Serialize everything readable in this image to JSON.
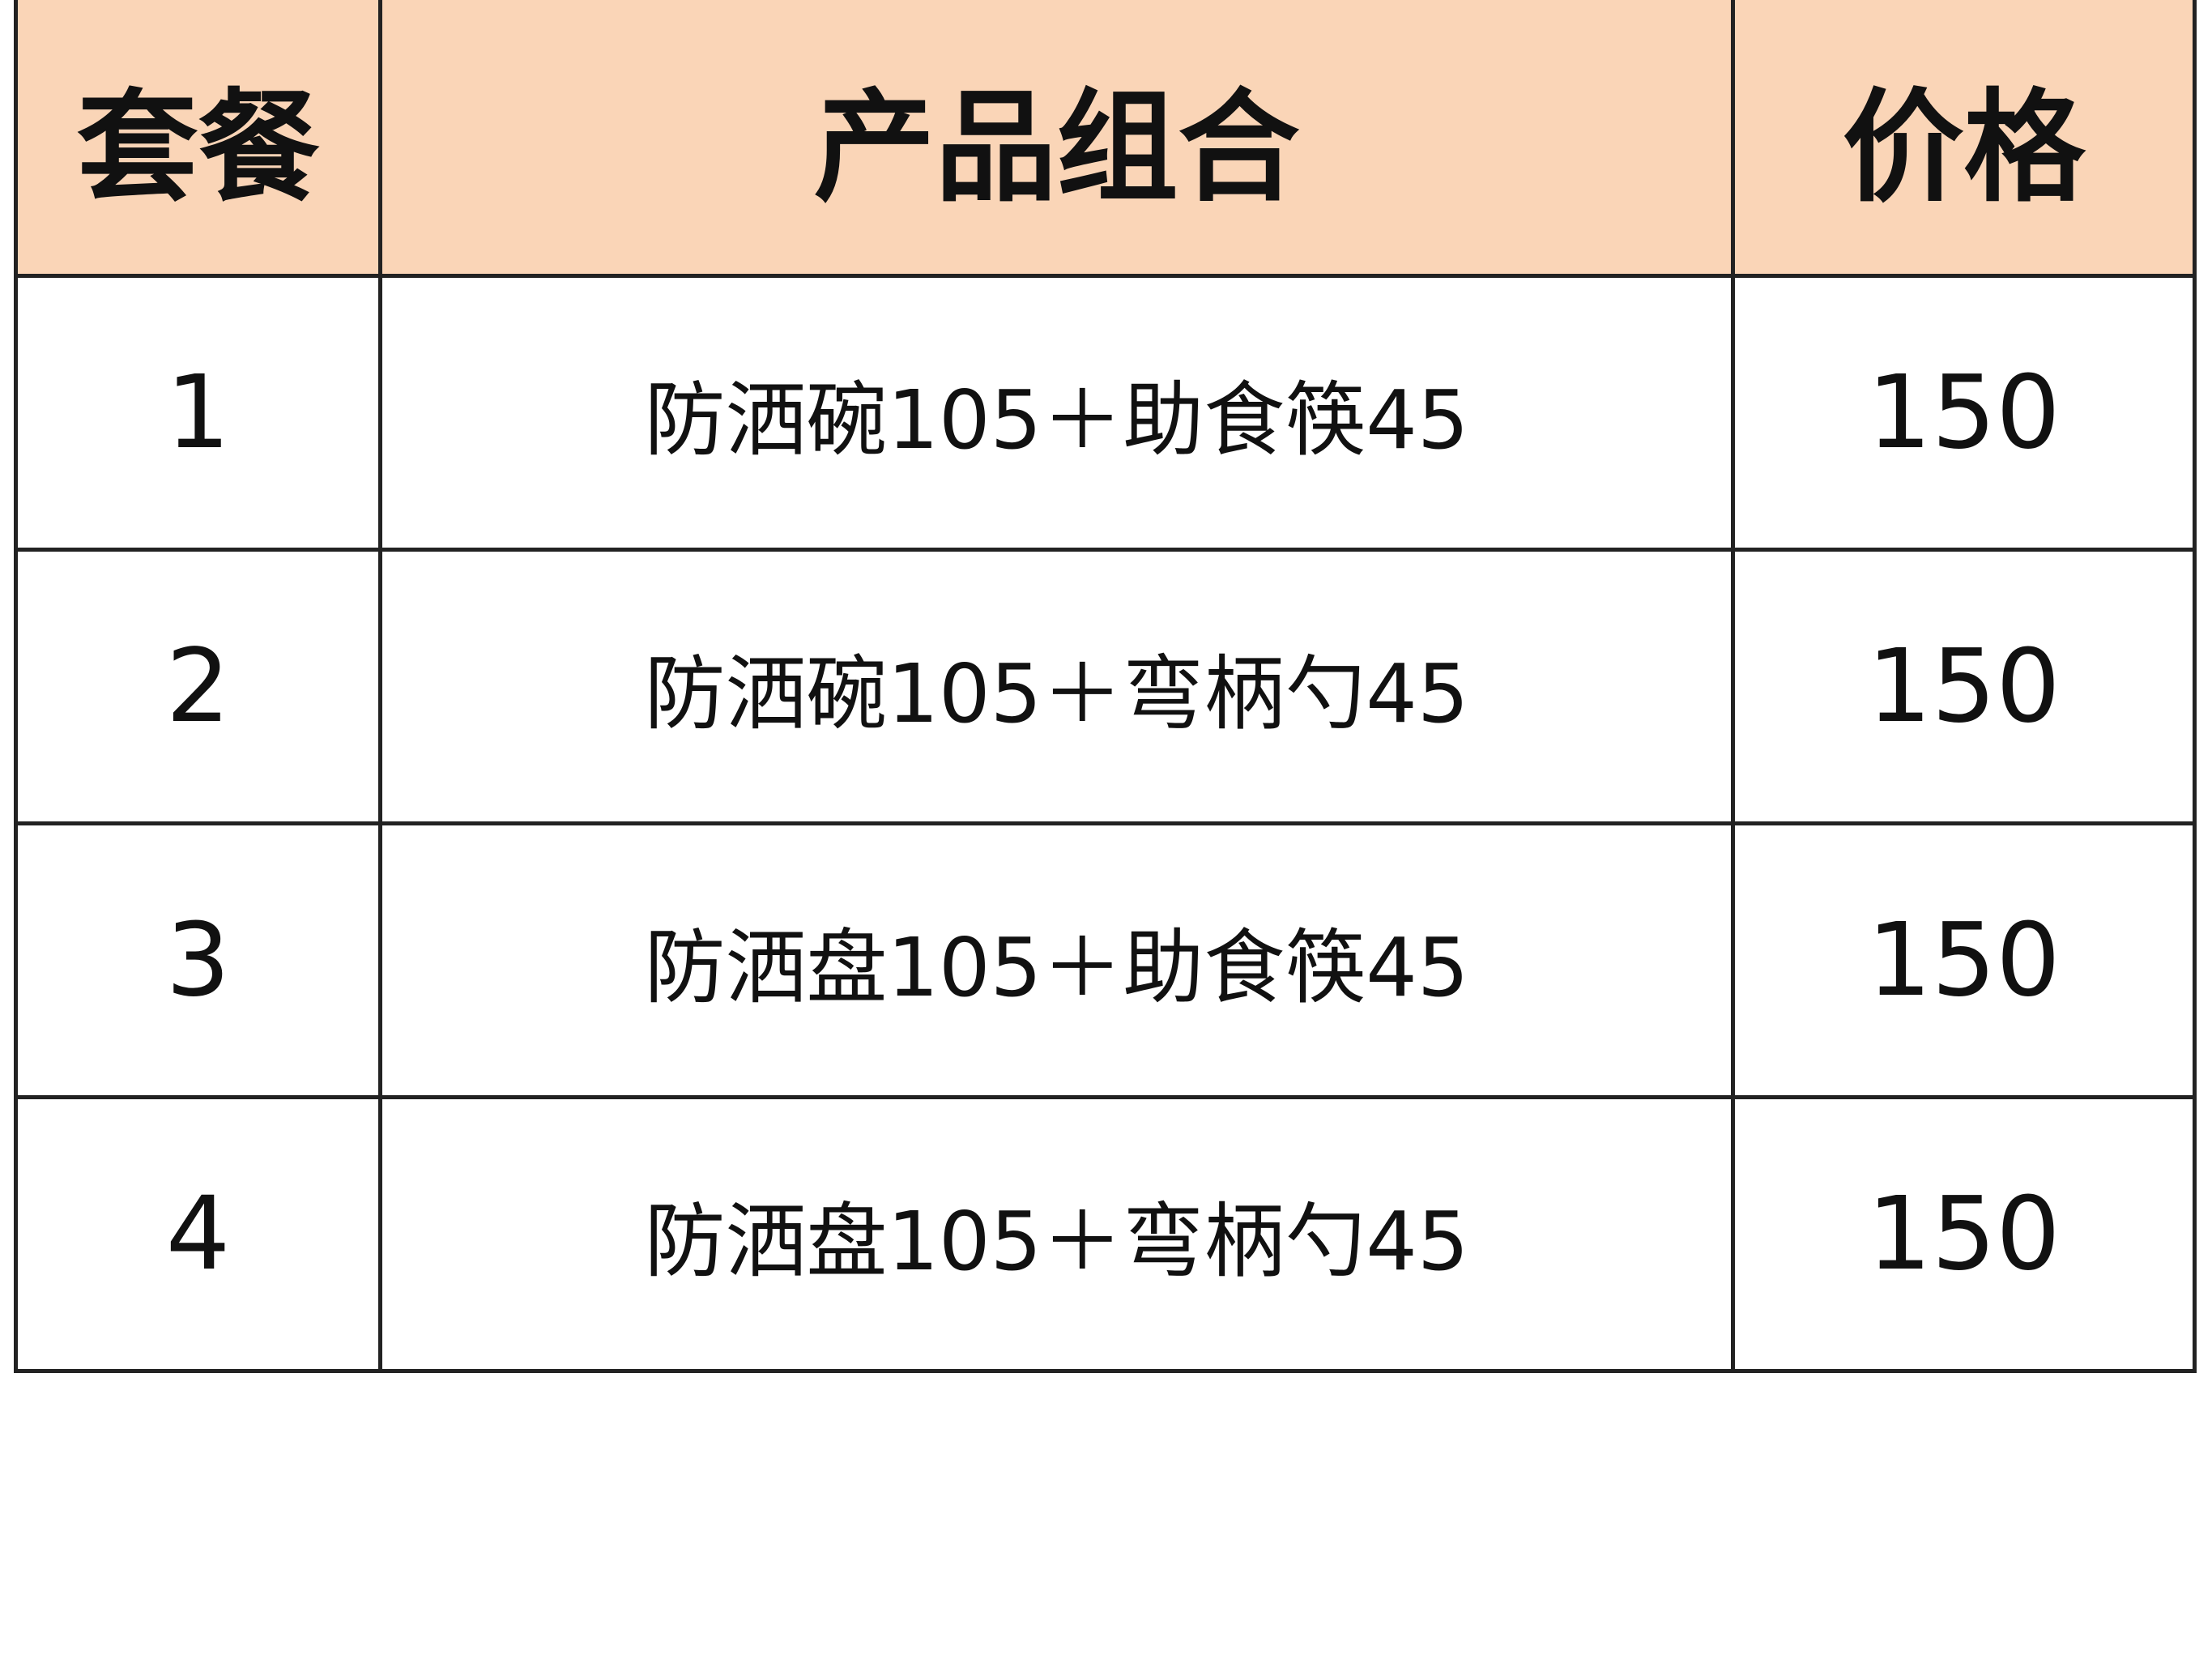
{
  "header_color": "#fad5b7",
  "headers": [
    "套餐",
    "产品组合",
    "价格"
  ],
  "rows": [
    {
      "id": "1",
      "combo": "防洒碗105＋助食筷45",
      "price": "150"
    },
    {
      "id": "2",
      "combo": "防洒碗105＋弯柄勺45",
      "price": "150"
    },
    {
      "id": "3",
      "combo": "防洒盘105＋助食筷45",
      "price": "150"
    },
    {
      "id": "4",
      "combo": "防洒盘105＋弯柄勺45",
      "price": "150"
    }
  ]
}
